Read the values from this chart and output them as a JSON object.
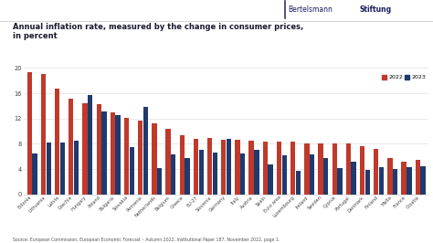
{
  "title_line1": "Annual inflation rate, measured by the change in consumer prices,",
  "title_line2": "in percent",
  "source": "Source: European Commission, European Economic Forecast – Autumn 2022, Institutional Paper 187, November 2022, page 1.",
  "categories": [
    "Estonia",
    "Lithuania",
    "Latvia",
    "Czechia",
    "Hungary",
    "Poland",
    "Bulgaria",
    "Slovakia",
    "Romania",
    "Netherlands",
    "Belgium",
    "Greece",
    "EU-27",
    "Slovenia",
    "Germany",
    "Italy",
    "Austria",
    "Spain",
    "Euro area",
    "Luxembourg",
    "Ireland",
    "Sweden",
    "Cyprus",
    "Portugal",
    "Denmark",
    "Finland",
    "Malta",
    "France",
    "Croatia"
  ],
  "values_2022": [
    19.4,
    19.0,
    16.8,
    15.1,
    14.5,
    14.3,
    13.0,
    12.1,
    11.7,
    11.3,
    10.4,
    9.3,
    8.8,
    9.0,
    8.7,
    8.7,
    8.5,
    8.3,
    8.4,
    8.3,
    8.1,
    8.1,
    8.1,
    8.1,
    7.7,
    7.2,
    5.7,
    5.2,
    5.5
  ],
  "values_2023": [
    6.5,
    8.2,
    8.2,
    8.5,
    15.7,
    13.1,
    12.5,
    7.5,
    13.8,
    4.2,
    6.3,
    5.8,
    7.0,
    6.6,
    8.8,
    6.5,
    7.0,
    4.7,
    6.2,
    3.8,
    6.3,
    5.8,
    4.1,
    5.2,
    3.9,
    4.3,
    4.0,
    4.3,
    4.4
  ],
  "color_2022": "#c0392b",
  "color_2023": "#1e3a6e",
  "ylim": [
    0,
    20
  ],
  "yticks": [
    0,
    4,
    8,
    12,
    16,
    20
  ],
  "bg": "#ffffff",
  "title_color": "#1a1a2e",
  "grid_color": "#e0e0e0",
  "source_color": "#555555",
  "logo_normal": "Bertelsmann",
  "logo_bold": "Stiftung",
  "logo_line_color": "#aaaaaa",
  "spine_color": "#cccccc"
}
